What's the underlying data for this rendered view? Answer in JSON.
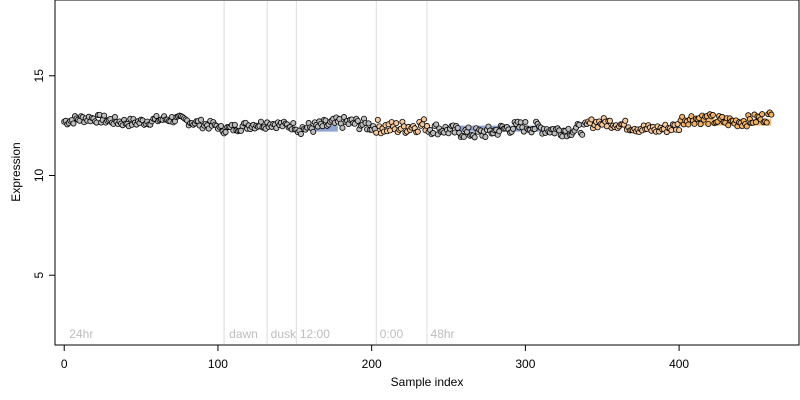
{
  "chart_data": {
    "type": "scatter",
    "xlabel": "Sample index",
    "ylabel": "Expression",
    "xlim": [
      -6,
      478
    ],
    "ylim": [
      1.5,
      18.8
    ],
    "x_ticks": [
      0,
      100,
      200,
      300,
      400
    ],
    "y_ticks": [
      5,
      10,
      15
    ],
    "grid": false,
    "legend": "none",
    "n_points": 461,
    "point_fill_default": "#bdbdbd",
    "point_stroke": "#000000",
    "vlines": [
      {
        "x": 104,
        "label": "24hr"
      },
      {
        "x": 132,
        "label": "dawn"
      },
      {
        "x": 151,
        "label": "dusk"
      },
      {
        "x": 203,
        "label": "12:00"
      },
      {
        "x": 236,
        "label": "0:00"
      }
    ],
    "annotations": [
      {
        "text": "24hr",
        "x": 2
      },
      {
        "text": "dawn",
        "x": 106
      },
      {
        "text": "dusk",
        "x": 133
      },
      {
        "text": "12:00",
        "x": 152
      },
      {
        "text": "0:00",
        "x": 204
      },
      {
        "text": "48hr",
        "x": 237
      }
    ],
    "highlight_bands": [
      {
        "x": [
          162,
          178
        ],
        "y": [
          12.2,
          12.5
        ],
        "color": "#7b93c8"
      },
      {
        "x": [
          256,
          312
        ],
        "y": [
          12.2,
          12.5
        ],
        "color": "#7b93c8"
      },
      {
        "x": [
          415,
          460
        ],
        "y": [
          12.5,
          12.85
        ],
        "color": "#f2b266"
      }
    ],
    "series_segments": [
      {
        "x": [
          0,
          100
        ],
        "y_mean": 12.7,
        "y_amp": 0.22,
        "fill": "#bdbdbd"
      },
      {
        "x": [
          101,
          131
        ],
        "y_mean": 12.5,
        "y_amp": 0.22,
        "fill": "#bdbdbd"
      },
      {
        "x": [
          132,
          151
        ],
        "y_mean": 12.55,
        "y_amp": 0.2,
        "fill": "#bdbdbd"
      },
      {
        "x": [
          152,
          202
        ],
        "y_mean": 12.45,
        "y_amp": 0.3,
        "fill": "#bdbdbd"
      },
      {
        "x": [
          203,
          236
        ],
        "y_mean": 12.5,
        "y_amp": 0.35,
        "fill": "#f7c89b"
      },
      {
        "x": [
          237,
          340
        ],
        "y_mean": 12.3,
        "y_amp": 0.3,
        "fill": "#bdbdbd"
      },
      {
        "x": [
          341,
          400
        ],
        "y_mean": 12.5,
        "y_amp": 0.25,
        "fill": "#f7c89b"
      },
      {
        "x": [
          401,
          460
        ],
        "y_mean": 12.8,
        "y_amp": 0.28,
        "fill": "#f2b266"
      }
    ]
  }
}
